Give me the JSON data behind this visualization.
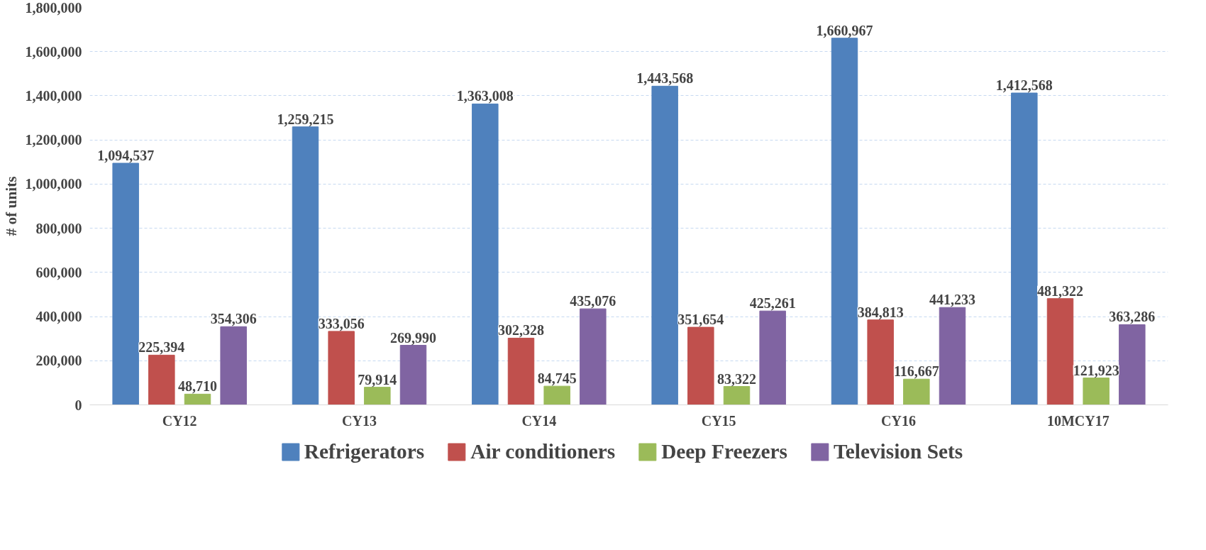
{
  "chart_data": {
    "type": "bar",
    "ylabel": "# of units",
    "categories": [
      "CY12",
      "CY13",
      "CY14",
      "CY15",
      "CY16",
      "10MCY17"
    ],
    "series": [
      {
        "name": "Refrigerators",
        "color": "#4f81bd",
        "values": [
          1094537,
          1259215,
          1363008,
          1443568,
          1660967,
          1412568
        ],
        "value_labels": [
          "1,094,537",
          "1,259,215",
          "1,363,008",
          "1,443,568",
          "1,660,967",
          "1,412,568"
        ]
      },
      {
        "name": "Air conditioners",
        "color": "#c0504d",
        "values": [
          225394,
          333056,
          302328,
          351654,
          384813,
          481322
        ],
        "value_labels": [
          "225,394",
          "333,056",
          "302,328",
          "351,654",
          "384,813",
          "481,322"
        ]
      },
      {
        "name": "Deep Freezers",
        "color": "#9bbb59",
        "values": [
          48710,
          79914,
          84745,
          83322,
          116667,
          121923
        ],
        "value_labels": [
          "48,710",
          "79,914",
          "84,745",
          "83,322",
          "116,667",
          "121,923"
        ]
      },
      {
        "name": "Television Sets",
        "color": "#8064a2",
        "values": [
          354306,
          269990,
          435076,
          425261,
          441233,
          363286
        ],
        "value_labels": [
          "354,306",
          "269,990",
          "435,076",
          "425,261",
          "441,233",
          "363,286"
        ]
      }
    ],
    "ylim": [
      0,
      1800000
    ],
    "yticks": [
      {
        "value": 0,
        "label": "0"
      },
      {
        "value": 200000,
        "label": "200,000"
      },
      {
        "value": 400000,
        "label": "400,000"
      },
      {
        "value": 600000,
        "label": "600,000"
      },
      {
        "value": 800000,
        "label": "800,000"
      },
      {
        "value": 1000000,
        "label": "1,000,000"
      },
      {
        "value": 1200000,
        "label": "1,200,000"
      },
      {
        "value": 1400000,
        "label": "1,400,000"
      },
      {
        "value": 1600000,
        "label": "1,600,000"
      },
      {
        "value": 1800000,
        "label": "1,800,000"
      }
    ],
    "grid": "y",
    "legend": "bottom"
  }
}
